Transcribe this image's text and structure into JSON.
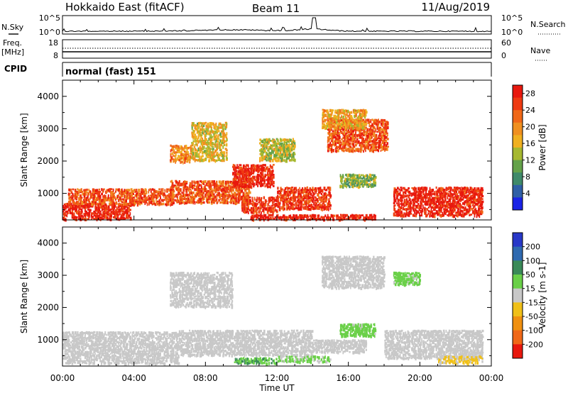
{
  "header": {
    "title_left": "Hokkaido East (fitACF)",
    "title_center": "Beam 11",
    "title_right": "11/Aug/2019"
  },
  "side_labels": {
    "nsky": "N.Sky",
    "freq": "Freq.",
    "freq_unit": "[MHz]",
    "cpid": "CPID",
    "nsearch": "N.Search",
    "nave": "Nave"
  },
  "noise_axis": {
    "top": "10^5",
    "bottom": "10^0"
  },
  "freq_axis": {
    "top": "18",
    "bottom": "8"
  },
  "nave_axis": {
    "top": "60",
    "bottom": "0"
  },
  "cpid_label": "normal (fast) 151",
  "chart_data": [
    {
      "type": "heatmap",
      "title": "Power",
      "ylabel": "Slant Range [km]",
      "xlabel": "",
      "x_ticks": [
        "00:00",
        "04:00",
        "08:00",
        "12:00",
        "16:00",
        "20:00",
        "00:00"
      ],
      "y_ticks": [
        1000,
        2000,
        3000,
        4000
      ],
      "xlim_hours": [
        0,
        24
      ],
      "ylim_km": [
        180,
        4500
      ],
      "colorbar": {
        "label": "Power [dB]",
        "ticks": [
          4,
          8,
          12,
          16,
          20,
          24,
          28
        ],
        "colors": [
          "#1a23e6",
          "#2f5fa6",
          "#3f8a6a",
          "#64a24a",
          "#a6b830",
          "#f0b020",
          "#f09020",
          "#f06818",
          "#ee3a12",
          "#e8180e"
        ]
      },
      "regions": [
        {
          "t0": 0.0,
          "t1": 3.8,
          "r0": 180,
          "r1": 700,
          "value": 28
        },
        {
          "t0": 0.3,
          "t1": 6.2,
          "r0": 650,
          "r1": 1150,
          "value": 24
        },
        {
          "t0": 6.0,
          "t1": 10.5,
          "r0": 700,
          "r1": 1400,
          "value": 24
        },
        {
          "t0": 9.5,
          "t1": 11.8,
          "r0": 1200,
          "r1": 1900,
          "value": 28
        },
        {
          "t0": 10.0,
          "t1": 12.0,
          "r0": 400,
          "r1": 900,
          "value": 26
        },
        {
          "t0": 12.0,
          "t1": 15.0,
          "r0": 500,
          "r1": 1200,
          "value": 26
        },
        {
          "t0": 10.5,
          "t1": 17.5,
          "r0": 180,
          "r1": 350,
          "value": 28
        },
        {
          "t0": 18.5,
          "t1": 23.5,
          "r0": 300,
          "r1": 1200,
          "value": 28
        },
        {
          "t0": 14.8,
          "t1": 18.2,
          "r0": 2300,
          "r1": 3300,
          "value": 24
        },
        {
          "t0": 6.0,
          "t1": 7.2,
          "r0": 1950,
          "r1": 2500,
          "value": 20
        },
        {
          "t0": 7.2,
          "t1": 9.2,
          "r0": 2000,
          "r1": 3200,
          "value": 16
        },
        {
          "t0": 14.5,
          "t1": 17.0,
          "r0": 3000,
          "r1": 3600,
          "value": 18
        },
        {
          "t0": 15.5,
          "t1": 17.5,
          "r0": 1200,
          "r1": 1600,
          "value": 12
        },
        {
          "t0": 11.0,
          "t1": 13.0,
          "r0": 2000,
          "r1": 2700,
          "value": 14
        }
      ]
    },
    {
      "type": "heatmap",
      "title": "Velocity",
      "ylabel": "Slant Range [km]",
      "xlabel": "Time UT",
      "x_ticks": [
        "00:00",
        "04:00",
        "08:00",
        "12:00",
        "16:00",
        "20:00",
        "00:00"
      ],
      "y_ticks": [
        1000,
        2000,
        3000,
        4000
      ],
      "xlim_hours": [
        0,
        24
      ],
      "ylim_km": [
        180,
        4500
      ],
      "colorbar": {
        "label": "Velocity [m s-1]",
        "ticks": [
          200,
          100,
          50,
          15,
          -15,
          -50,
          -100,
          -200
        ],
        "colors": [
          "#2838c8",
          "#2f6ab0",
          "#3a8a58",
          "#6ad048",
          "#c8c8c8",
          "#f0c018",
          "#f09010",
          "#f06818",
          "#e8180e"
        ]
      },
      "regions": [
        {
          "t0": 0.0,
          "t1": 6.5,
          "r0": 250,
          "r1": 1250,
          "value": 0
        },
        {
          "t0": 6.5,
          "t1": 14.0,
          "r0": 500,
          "r1": 1300,
          "value": 0
        },
        {
          "t0": 14.0,
          "t1": 17.0,
          "r0": 600,
          "r1": 1000,
          "value": 0
        },
        {
          "t0": 9.5,
          "t1": 12.0,
          "r0": 250,
          "r1": 450,
          "value": 60
        },
        {
          "t0": 12.0,
          "t1": 15.0,
          "r0": 300,
          "r1": 500,
          "value": 30
        },
        {
          "t0": 18.0,
          "t1": 23.5,
          "r0": 400,
          "r1": 1300,
          "value": 0
        },
        {
          "t0": 14.5,
          "t1": 18.0,
          "r0": 2600,
          "r1": 3600,
          "value": 0
        },
        {
          "t0": 6.0,
          "t1": 9.5,
          "r0": 2000,
          "r1": 3100,
          "value": 0
        },
        {
          "t0": 15.5,
          "t1": 17.5,
          "r0": 1100,
          "r1": 1500,
          "value": 40
        },
        {
          "t0": 18.5,
          "t1": 20.0,
          "r0": 2700,
          "r1": 3100,
          "value": 40
        },
        {
          "t0": 21.0,
          "t1": 23.5,
          "r0": 250,
          "r1": 500,
          "value": -30
        }
      ]
    }
  ],
  "bottom_axis": {
    "ticks": [
      "00:00",
      "04:00",
      "08:00",
      "12:00",
      "16:00",
      "20:00",
      "00:00"
    ],
    "label": "Time UT"
  }
}
